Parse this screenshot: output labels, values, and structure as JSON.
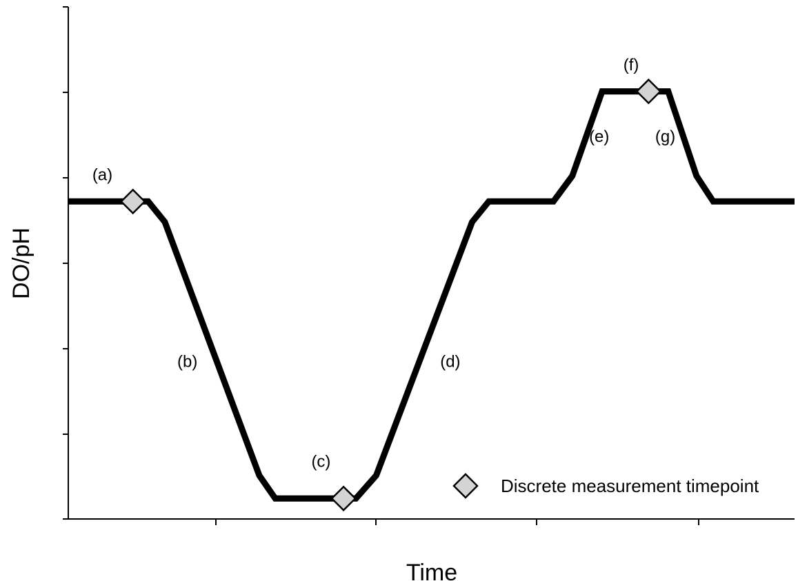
{
  "chart_data": {
    "type": "line",
    "title": "",
    "xlabel": "Time",
    "ylabel": "DO/pH",
    "xlim": [
      0,
      100
    ],
    "ylim": [
      0,
      100
    ],
    "grid": false,
    "x_tick_labels": [],
    "y_tick_labels": [],
    "series": [
      {
        "values": [
          {
            "x": 0,
            "y": 62
          },
          {
            "x": 11,
            "y": 62
          },
          {
            "x": 13.3,
            "y": 58
          },
          {
            "x": 26.3,
            "y": 8.5
          },
          {
            "x": 28.5,
            "y": 4
          },
          {
            "x": 39.6,
            "y": 4
          },
          {
            "x": 42.4,
            "y": 8.5
          },
          {
            "x": 55.6,
            "y": 58
          },
          {
            "x": 57.9,
            "y": 62
          },
          {
            "x": 66.8,
            "y": 62
          },
          {
            "x": 69.4,
            "y": 67
          },
          {
            "x": 73.5,
            "y": 83.5
          },
          {
            "x": 82.6,
            "y": 83.5
          },
          {
            "x": 86.5,
            "y": 67
          },
          {
            "x": 88.8,
            "y": 62
          },
          {
            "x": 100,
            "y": 62
          }
        ]
      }
    ],
    "markers": [
      {
        "x": 8.9,
        "y": 62
      },
      {
        "x": 37.9,
        "y": 4
      },
      {
        "x": 79.9,
        "y": 83.5
      }
    ],
    "annotations": [
      {
        "label": "(a)",
        "x": 4.7,
        "y": 67
      },
      {
        "label": "(b)",
        "x": 16.4,
        "y": 30.5
      },
      {
        "label": "(c)",
        "x": 34.8,
        "y": 11
      },
      {
        "label": "(d)",
        "x": 52.6,
        "y": 30.5
      },
      {
        "label": "(e)",
        "x": 73.1,
        "y": 74.5
      },
      {
        "label": "(f)",
        "x": 77.5,
        "y": 88.5
      },
      {
        "label": "(g)",
        "x": 82.2,
        "y": 74.5
      }
    ],
    "legend": {
      "position": "bottom-right",
      "entries": [
        {
          "label": "Discrete measurement timepoint",
          "marker": "diamond"
        }
      ]
    },
    "colors": {
      "line": "#000000",
      "marker_fill": "#d4d4d4",
      "marker_stroke": "#000000",
      "axis": "#000000"
    }
  }
}
